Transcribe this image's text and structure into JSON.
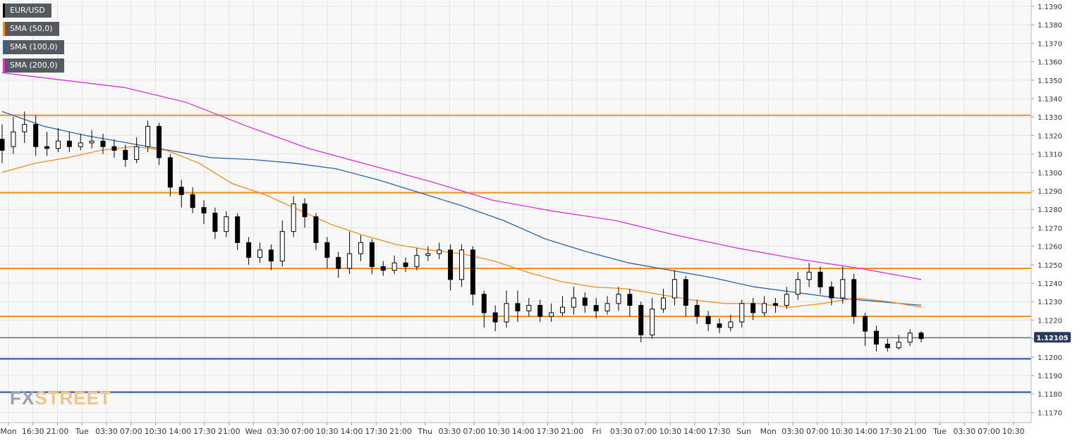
{
  "chart_data": {
    "type": "candlestick",
    "symbol": "EUR/USD",
    "ylim": [
      1.1163,
      1.1396
    ],
    "y_ticks": [
      "1.1390",
      "1.1380",
      "1.1370",
      "1.1360",
      "1.1350",
      "1.1340",
      "1.1330",
      "1.1320",
      "1.1310",
      "1.1300",
      "1.1290",
      "1.1280",
      "1.1270",
      "1.1260",
      "1.1250",
      "1.1240",
      "1.1230",
      "1.1220",
      "1.1210",
      "1.1200",
      "1.1190",
      "1.1180",
      "1.1170"
    ],
    "x_ticks": [
      "Mon",
      "16:30",
      "21:00",
      "Tue",
      "03:30",
      "07:00",
      "10:30",
      "14:00",
      "17:30",
      "21:00",
      "Wed",
      "03:30",
      "07:00",
      "10:30",
      "14:00",
      "17:30",
      "21:00",
      "Thu",
      "03:30",
      "07:00",
      "10:30",
      "14:00",
      "17:30",
      "21:00",
      "Fri",
      "03:30",
      "07:00",
      "10:30",
      "14:00",
      "17:30",
      "Sun",
      "Mon",
      "03:30",
      "07:00",
      "10:30",
      "14:00",
      "17:30",
      "21:00",
      "Tue",
      "03:30",
      "07:00",
      "10:30"
    ],
    "last_price": "1.12105",
    "resistance_levels": [
      1.1331,
      1.1289,
      1.1248,
      1.1222
    ],
    "support_levels": [
      1.1199,
      1.1181
    ],
    "legend": [
      {
        "label": "EUR/USD",
        "color": "#000000"
      },
      {
        "label": "SMA (50,0)",
        "color": "#f28e1c"
      },
      {
        "label": "SMA (100,0)",
        "color": "#2f62a8"
      },
      {
        "label": "SMA (200,0)",
        "color": "#d930d9"
      }
    ],
    "sma50": [
      1.13,
      1.1305,
      1.1308,
      1.1312,
      1.1314,
      1.1312,
      1.1305,
      1.1294,
      1.1288,
      1.128,
      1.1272,
      1.1266,
      1.1261,
      1.1258,
      1.1256,
      1.1252,
      1.1246,
      1.1241,
      1.1238,
      1.1237,
      1.1234,
      1.1231,
      1.1229,
      1.1229,
      1.1227,
      1.1229,
      1.1232,
      1.123,
      1.1227
    ],
    "sma100": [
      1.1333,
      1.1325,
      1.132,
      1.1316,
      1.1312,
      1.1308,
      1.1307,
      1.1305,
      1.1302,
      1.1296,
      1.1289,
      1.1282,
      1.1274,
      1.1264,
      1.1257,
      1.1251,
      1.1247,
      1.1243,
      1.1238,
      1.1235,
      1.1232,
      1.123,
      1.1228
    ],
    "sma200": [
      1.1354,
      1.135,
      1.1346,
      1.1338,
      1.1325,
      1.1313,
      1.1304,
      1.1295,
      1.1285,
      1.1279,
      1.1274,
      1.1266,
      1.1259,
      1.1253,
      1.1248,
      1.1242
    ],
    "candles": [
      [
        1.1318,
        1.1312,
        1.1326,
        1.1305
      ],
      [
        1.1314,
        1.1322,
        1.133,
        1.131
      ],
      [
        1.1322,
        1.1326,
        1.1333,
        1.1316
      ],
      [
        1.1326,
        1.1314,
        1.1331,
        1.1309
      ],
      [
        1.1314,
        1.1313,
        1.1322,
        1.1309
      ],
      [
        1.1313,
        1.1317,
        1.1324,
        1.1311
      ],
      [
        1.1317,
        1.1314,
        1.1322,
        1.1311
      ],
      [
        1.1314,
        1.1316,
        1.1321,
        1.1312
      ],
      [
        1.1316,
        1.1317,
        1.1323,
        1.1313
      ],
      [
        1.1317,
        1.1314,
        1.1321,
        1.131
      ],
      [
        1.1314,
        1.1312,
        1.1318,
        1.1308
      ],
      [
        1.1312,
        1.1307,
        1.1315,
        1.1303
      ],
      [
        1.1307,
        1.1314,
        1.1319,
        1.1305
      ],
      [
        1.1314,
        1.1325,
        1.1328,
        1.1311
      ],
      [
        1.1325,
        1.1308,
        1.1327,
        1.1304
      ],
      [
        1.1308,
        1.1292,
        1.131,
        1.1287
      ],
      [
        1.1292,
        1.1288,
        1.1296,
        1.1281
      ],
      [
        1.1288,
        1.1281,
        1.1292,
        1.1278
      ],
      [
        1.1281,
        1.1278,
        1.1285,
        1.1272
      ],
      [
        1.1278,
        1.1268,
        1.1281,
        1.1264
      ],
      [
        1.1268,
        1.1276,
        1.1279,
        1.1265
      ],
      [
        1.1276,
        1.1262,
        1.1278,
        1.1258
      ],
      [
        1.1262,
        1.1254,
        1.1265,
        1.125
      ],
      [
        1.1254,
        1.1258,
        1.1262,
        1.1251
      ],
      [
        1.1258,
        1.1252,
        1.1261,
        1.1247
      ],
      [
        1.1252,
        1.1268,
        1.1274,
        1.1249
      ],
      [
        1.1268,
        1.1283,
        1.1287,
        1.1265
      ],
      [
        1.1283,
        1.1276,
        1.1286,
        1.127
      ],
      [
        1.1276,
        1.1262,
        1.1278,
        1.1258
      ],
      [
        1.1262,
        1.1254,
        1.1265,
        1.1248
      ],
      [
        1.1254,
        1.1248,
        1.1257,
        1.1243
      ],
      [
        1.1248,
        1.1256,
        1.1268,
        1.1245
      ],
      [
        1.1256,
        1.1262,
        1.1266,
        1.1252
      ],
      [
        1.1262,
        1.1249,
        1.1264,
        1.1245
      ],
      [
        1.1249,
        1.1247,
        1.1252,
        1.1244
      ],
      [
        1.1247,
        1.1251,
        1.1255,
        1.1245
      ],
      [
        1.1251,
        1.1249,
        1.1254,
        1.1246
      ],
      [
        1.1249,
        1.1255,
        1.1259,
        1.1247
      ],
      [
        1.1255,
        1.1256,
        1.126,
        1.1252
      ],
      [
        1.1256,
        1.1258,
        1.1262,
        1.1253
      ],
      [
        1.1258,
        1.1242,
        1.1261,
        1.1236
      ],
      [
        1.1242,
        1.1258,
        1.1261,
        1.1238
      ],
      [
        1.1258,
        1.1234,
        1.126,
        1.1228
      ],
      [
        1.1234,
        1.1224,
        1.1236,
        1.1216
      ],
      [
        1.1224,
        1.1219,
        1.1228,
        1.1214
      ],
      [
        1.1219,
        1.1229,
        1.1236,
        1.1216
      ],
      [
        1.1229,
        1.1225,
        1.1236,
        1.1219
      ],
      [
        1.1225,
        1.1228,
        1.1232,
        1.1222
      ],
      [
        1.1228,
        1.1222,
        1.1231,
        1.1219
      ],
      [
        1.1222,
        1.1224,
        1.1229,
        1.1219
      ],
      [
        1.1224,
        1.1227,
        1.1233,
        1.1222
      ],
      [
        1.1227,
        1.1232,
        1.1238,
        1.1223
      ],
      [
        1.1232,
        1.1228,
        1.1235,
        1.1224
      ],
      [
        1.1228,
        1.1225,
        1.1232,
        1.1221
      ],
      [
        1.1225,
        1.1229,
        1.1233,
        1.1223
      ],
      [
        1.1229,
        1.1234,
        1.1238,
        1.1225
      ],
      [
        1.1234,
        1.1228,
        1.1237,
        1.1222
      ],
      [
        1.1228,
        1.1212,
        1.123,
        1.1208
      ],
      [
        1.1212,
        1.1226,
        1.1232,
        1.121
      ],
      [
        1.1226,
        1.1232,
        1.1237,
        1.1224
      ],
      [
        1.1232,
        1.1242,
        1.1247,
        1.1228
      ],
      [
        1.1242,
        1.1228,
        1.1244,
        1.1222
      ],
      [
        1.1228,
        1.1222,
        1.1231,
        1.1218
      ],
      [
        1.1222,
        1.1218,
        1.1225,
        1.1214
      ],
      [
        1.1218,
        1.1216,
        1.1221,
        1.1213
      ],
      [
        1.1216,
        1.1219,
        1.1223,
        1.1214
      ],
      [
        1.1219,
        1.1229,
        1.1231,
        1.1216
      ],
      [
        1.1229,
        1.1224,
        1.1232,
        1.122
      ],
      [
        1.1224,
        1.1229,
        1.1233,
        1.1222
      ],
      [
        1.1229,
        1.1228,
        1.1232,
        1.1224
      ],
      [
        1.1228,
        1.1234,
        1.1238,
        1.1226
      ],
      [
        1.1234,
        1.1242,
        1.1246,
        1.1231
      ],
      [
        1.1242,
        1.1246,
        1.1251,
        1.1238
      ],
      [
        1.1246,
        1.1238,
        1.1249,
        1.1234
      ],
      [
        1.1238,
        1.1232,
        1.1241,
        1.1228
      ],
      [
        1.1232,
        1.1242,
        1.1249,
        1.1229
      ],
      [
        1.1242,
        1.1222,
        1.1245,
        1.1218
      ],
      [
        1.1222,
        1.1214,
        1.1224,
        1.1206
      ],
      [
        1.1214,
        1.1207,
        1.1217,
        1.1203
      ],
      [
        1.1207,
        1.1205,
        1.121,
        1.1203
      ],
      [
        1.1205,
        1.1208,
        1.1212,
        1.1204
      ],
      [
        1.1208,
        1.1213,
        1.1215,
        1.1206
      ],
      [
        1.1213,
        1.121,
        1.1214,
        1.1208
      ]
    ]
  }
}
